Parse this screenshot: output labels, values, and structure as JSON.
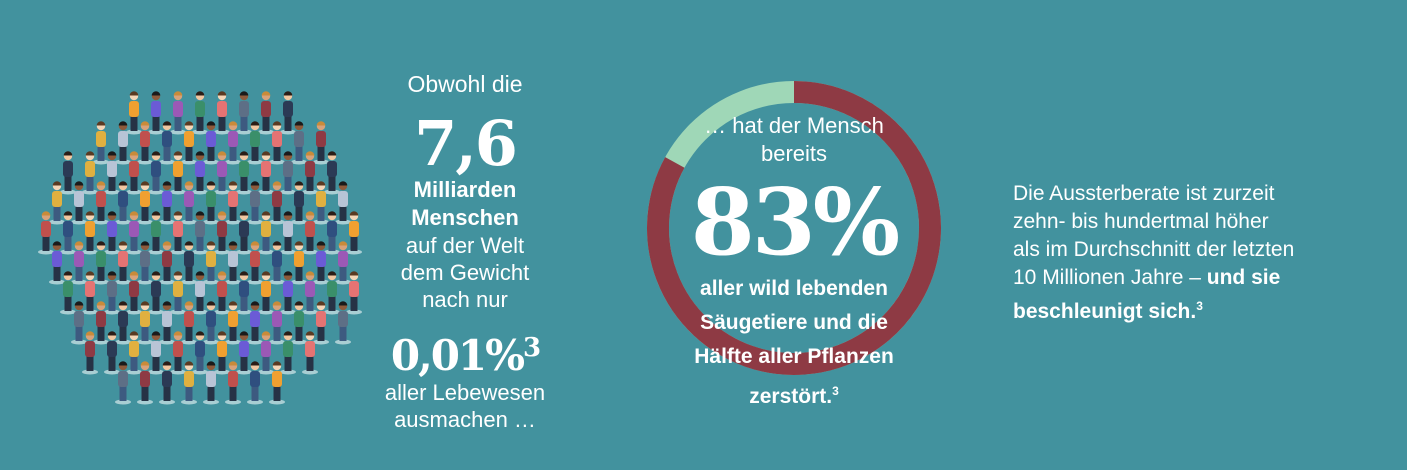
{
  "illustration": {
    "icon": "crowd-of-people-icon"
  },
  "people_stat": {
    "intro": "Obwohl die",
    "number": "7,6",
    "unit_line1": "Milliarden",
    "unit_line2": "Menschen",
    "line1": "auf der Welt",
    "line2": "dem Gewicht",
    "line3": "nach nur",
    "share_number": "0,01%",
    "share_footnote": "3",
    "tail1": "aller Lebewesen",
    "tail2": "ausmachen …"
  },
  "destruction_stat": {
    "lead1": "… hat der Mensch",
    "lead2": "bereits",
    "percent_label": "83%",
    "percent_value": 83,
    "desc1": "aller wild lebenden",
    "desc2": "Säugetiere und die",
    "desc3": "Hälfte aller Pflanzen",
    "desc4": "zerstört.",
    "footnote": "3",
    "colors": {
      "destroyed": "#8e3a44",
      "remaining": "#9fd7b7"
    }
  },
  "extinction_note": {
    "line1": "Die Aussterberate ist zurzeit",
    "line2": "zehn- bis hundertmal höher",
    "line3": "als im Durchschnitt der letzten",
    "line4_regular": "10 Millionen Jahre – ",
    "line4_bold": "und sie",
    "line5_bold": "beschleunigt sich.",
    "footnote": "3"
  }
}
